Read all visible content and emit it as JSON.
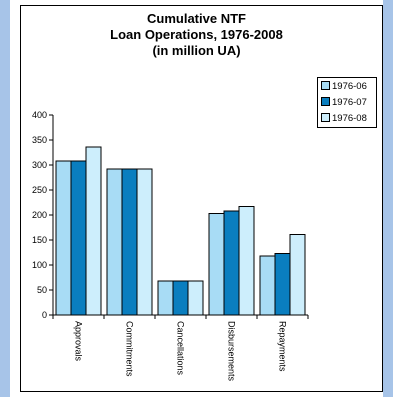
{
  "chart_data": {
    "type": "bar",
    "title_lines": [
      "Cumulative NTF",
      "Loan Operations, 1976-2008",
      "(in million UA)"
    ],
    "categories": [
      "Approvals",
      "Commitments",
      "Cancellations",
      "Disbursements",
      "Repayments"
    ],
    "series": [
      {
        "name": "1976-06",
        "color": "#a8dcf5",
        "values": [
          308,
          292,
          68,
          203,
          118
        ]
      },
      {
        "name": "1976-07",
        "color": "#0a7ebf",
        "values": [
          308,
          292,
          68,
          208,
          123
        ]
      },
      {
        "name": "1976-08",
        "color": "#cdeefc",
        "values": [
          336,
          292,
          68,
          217,
          161
        ]
      }
    ],
    "yticks": [
      "0",
      "50",
      "100",
      "150",
      "200",
      "250",
      "300",
      "350",
      "400"
    ],
    "ylim": [
      0,
      400
    ],
    "grid": false,
    "legend_position": "right"
  }
}
